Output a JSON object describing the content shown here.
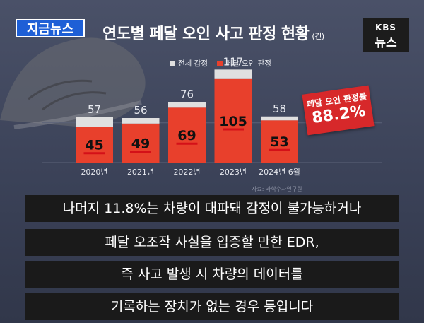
{
  "badge": "지금뉴스",
  "title": "연도별 페달 오인 사고 판정 현황",
  "title_unit": "(건)",
  "logo": {
    "line1": "KBS",
    "line2": "뉴스"
  },
  "legend": [
    {
      "label": "전체 감정",
      "color": "#e0e0e0"
    },
    {
      "label": "페달 오인 판정",
      "color": "#e8402c"
    }
  ],
  "rate_box": {
    "label": "페달 오인 판정률",
    "value": "88.2%"
  },
  "source": "자료: 과학수사연구원",
  "subtitles": [
    "나머지 11.8%는 차량이 대파돼 감정이 불가능하거나",
    "페달 오조작 사실을 입증할 만한 EDR,",
    "즉 사고 발생 시 차량의 데이터를",
    "기록하는 장치가 없는 경우 등입니다"
  ],
  "chart_data": {
    "type": "bar",
    "categories": [
      "2020년",
      "2021년",
      "2022년",
      "2023년",
      "2024년 6월"
    ],
    "series": [
      {
        "name": "전체 감정",
        "values": [
          57,
          56,
          76,
          117,
          58
        ]
      },
      {
        "name": "페달 오인 판정",
        "values": [
          45,
          49,
          69,
          105,
          53
        ]
      }
    ],
    "ylim": [
      0,
      120
    ],
    "grid": true,
    "legend_position": "top"
  }
}
